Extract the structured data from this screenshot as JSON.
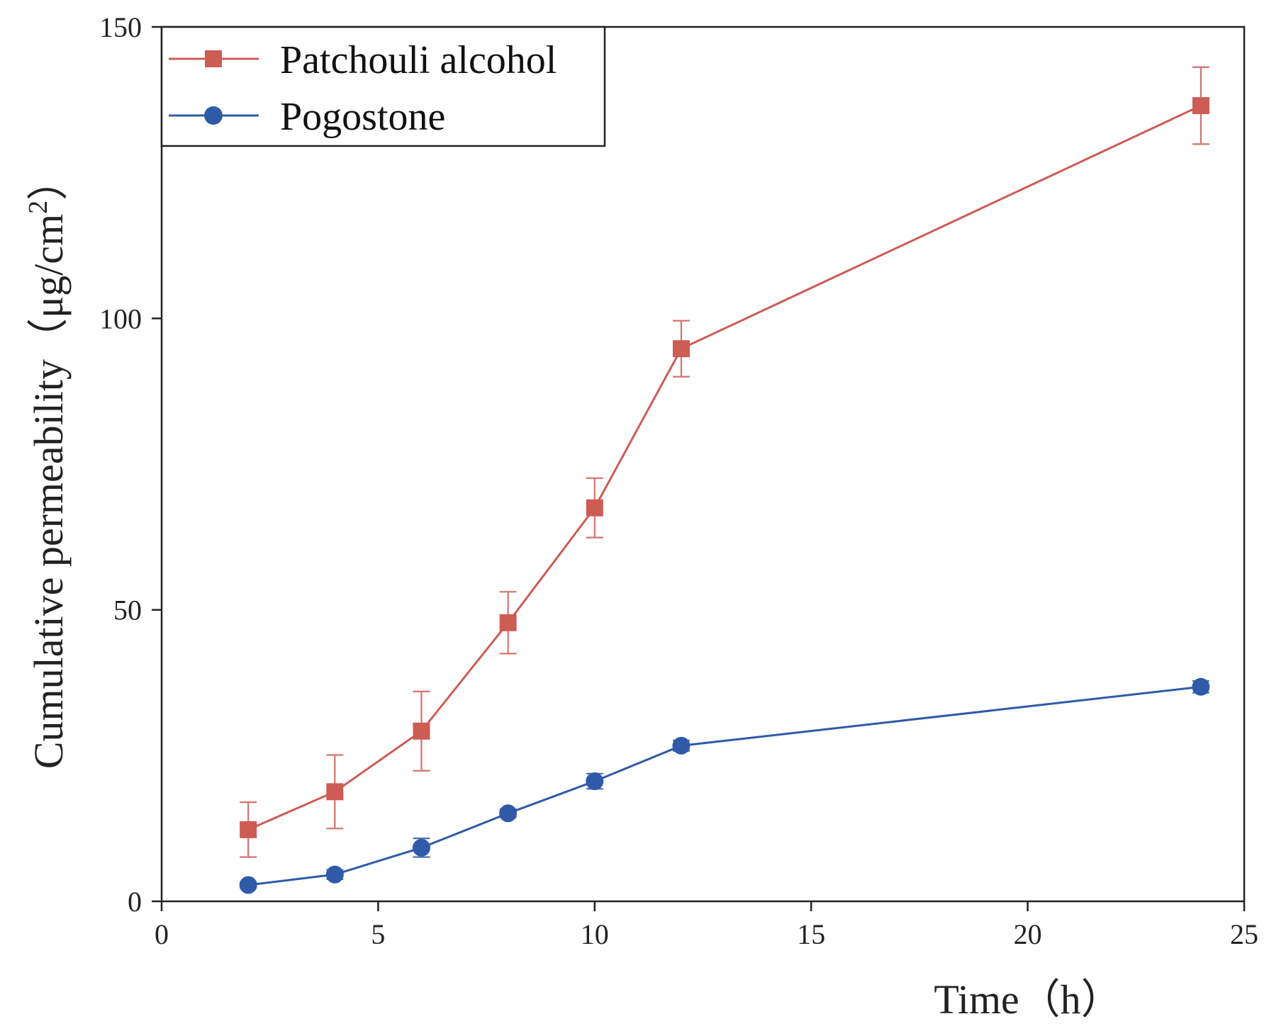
{
  "chart_data": {
    "type": "line",
    "title": "",
    "xlabel": "Time（h）",
    "ylabel": "Cumulative permeability（μg/cm",
    "ylabel_sup": "2",
    "ylabel_close": "）",
    "xlim": [
      0,
      25
    ],
    "ylim": [
      0,
      150
    ],
    "xticks": [
      0,
      5,
      10,
      15,
      20,
      25
    ],
    "yticks": [
      0,
      50,
      100,
      150
    ],
    "grid": false,
    "legend_position": "top-left",
    "x": [
      2,
      4,
      6,
      8,
      10,
      12,
      24
    ],
    "series": [
      {
        "name": "Patchouli alcohol",
        "color": "#cd5c55",
        "marker": "square",
        "values": [
          12.3,
          18.8,
          29.2,
          47.8,
          67.5,
          94.8,
          136.5
        ],
        "errors": [
          4.7,
          6.3,
          6.8,
          5.3,
          5.1,
          4.8,
          6.6
        ]
      },
      {
        "name": "Pogostone",
        "color": "#2f5aa8",
        "marker": "circle",
        "values": [
          2.8,
          4.6,
          9.2,
          15.1,
          20.6,
          26.7,
          36.8
        ],
        "errors": [
          0.5,
          0.8,
          1.6,
          0.7,
          1.3,
          0.9,
          1.0
        ]
      }
    ]
  }
}
